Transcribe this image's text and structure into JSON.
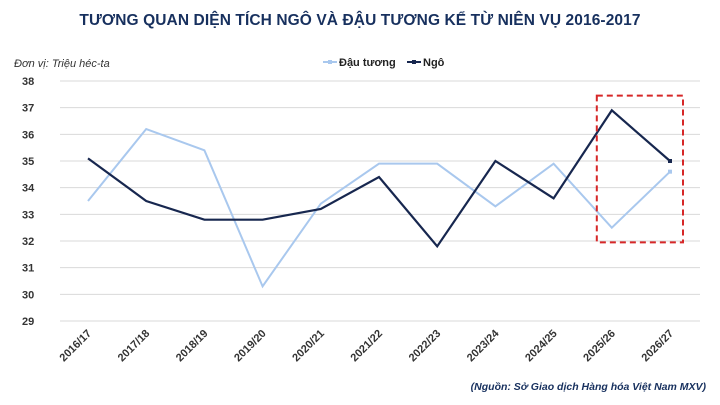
{
  "chart_data": {
    "type": "line",
    "title": "TƯƠNG QUAN DIỆN TÍCH NGÔ VÀ ĐẬU TƯƠNG KỂ TỪ NIÊN VỤ 2016-2017",
    "unit_label": "Đơn vị: Triệu héc-ta",
    "source": "(Nguồn: Sở Giao dịch Hàng hóa Việt Nam MXV)",
    "categories": [
      "2016/17",
      "2017/18",
      "2018/19",
      "2019/20",
      "2020/21",
      "2021/22",
      "2022/23",
      "2023/24",
      "2024/25",
      "2025/26",
      "2026/27"
    ],
    "ylim": [
      29,
      38
    ],
    "yticks": [
      29,
      30,
      31,
      32,
      33,
      34,
      35,
      36,
      37,
      38
    ],
    "legend_position": "top-center",
    "grid": true,
    "series": [
      {
        "name": "Đậu tương",
        "color": "#a9c8ee",
        "values": [
          33.5,
          36.2,
          35.4,
          30.3,
          33.4,
          34.9,
          34.9,
          33.3,
          34.9,
          32.5,
          34.6
        ]
      },
      {
        "name": "Ngô",
        "color": "#17274f",
        "values": [
          35.1,
          33.5,
          32.8,
          32.8,
          33.2,
          34.4,
          31.8,
          35.0,
          33.6,
          36.9,
          35.0
        ]
      }
    ],
    "highlight": {
      "from": "2025/26",
      "to": "2026/27",
      "color": "#d62728"
    }
  }
}
